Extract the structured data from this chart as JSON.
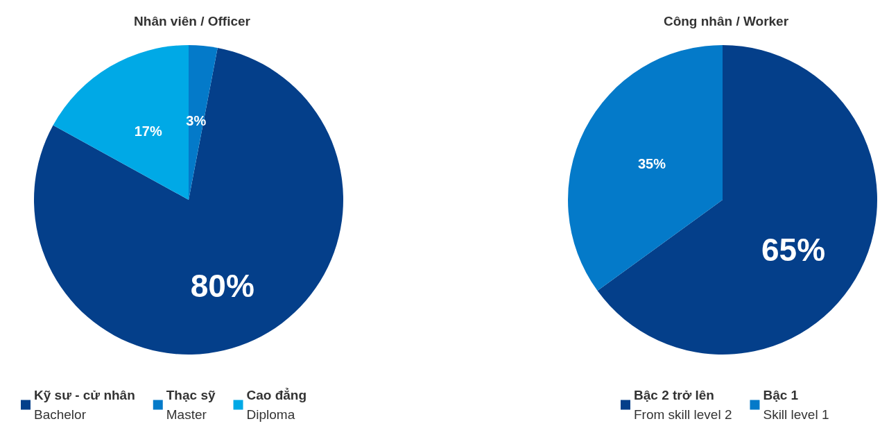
{
  "chart_data": [
    {
      "type": "pie",
      "title": "Nhân viên / Officer",
      "categories": [
        "Kỹ sư - cử nhân\nBachelor",
        "Thạc sỹ\nMaster",
        "Cao đẳng\nDiploma"
      ],
      "values": [
        80,
        3,
        17
      ],
      "colors": [
        "#043f8a",
        "#047ac9",
        "#00a9e6"
      ],
      "value_labels": [
        "80%",
        "3%",
        "17%"
      ],
      "legend": "bottom"
    },
    {
      "type": "pie",
      "title": "Công nhân / Worker",
      "categories": [
        "Bậc 2 trở lên\nFrom skill level 2",
        "Bậc 1\nSkill level 1"
      ],
      "values": [
        65,
        35
      ],
      "colors": [
        "#043f8a",
        "#047ac9"
      ],
      "value_labels": [
        "65%",
        "35%"
      ],
      "legend": "bottom"
    }
  ]
}
